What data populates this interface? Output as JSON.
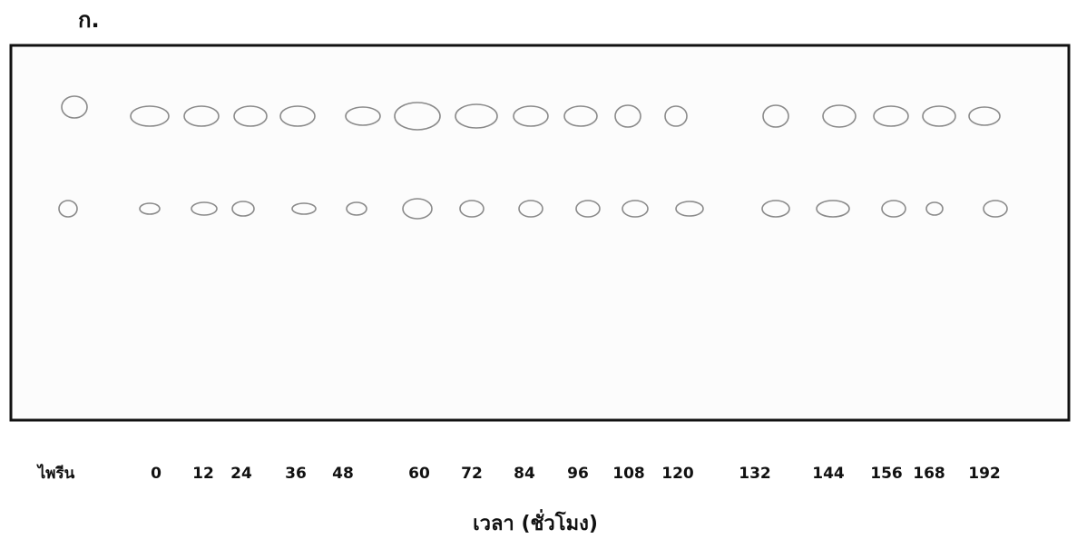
{
  "panel_label": "ก.",
  "lanes": [
    "ไพรีน",
    "0",
    "12",
    "24",
    "36",
    "48",
    "60",
    "72",
    "84",
    "96",
    "108",
    "120",
    "132",
    "144",
    "156",
    "168",
    "192"
  ],
  "axis_label": "เวลา (ชั่วโมง)"
}
